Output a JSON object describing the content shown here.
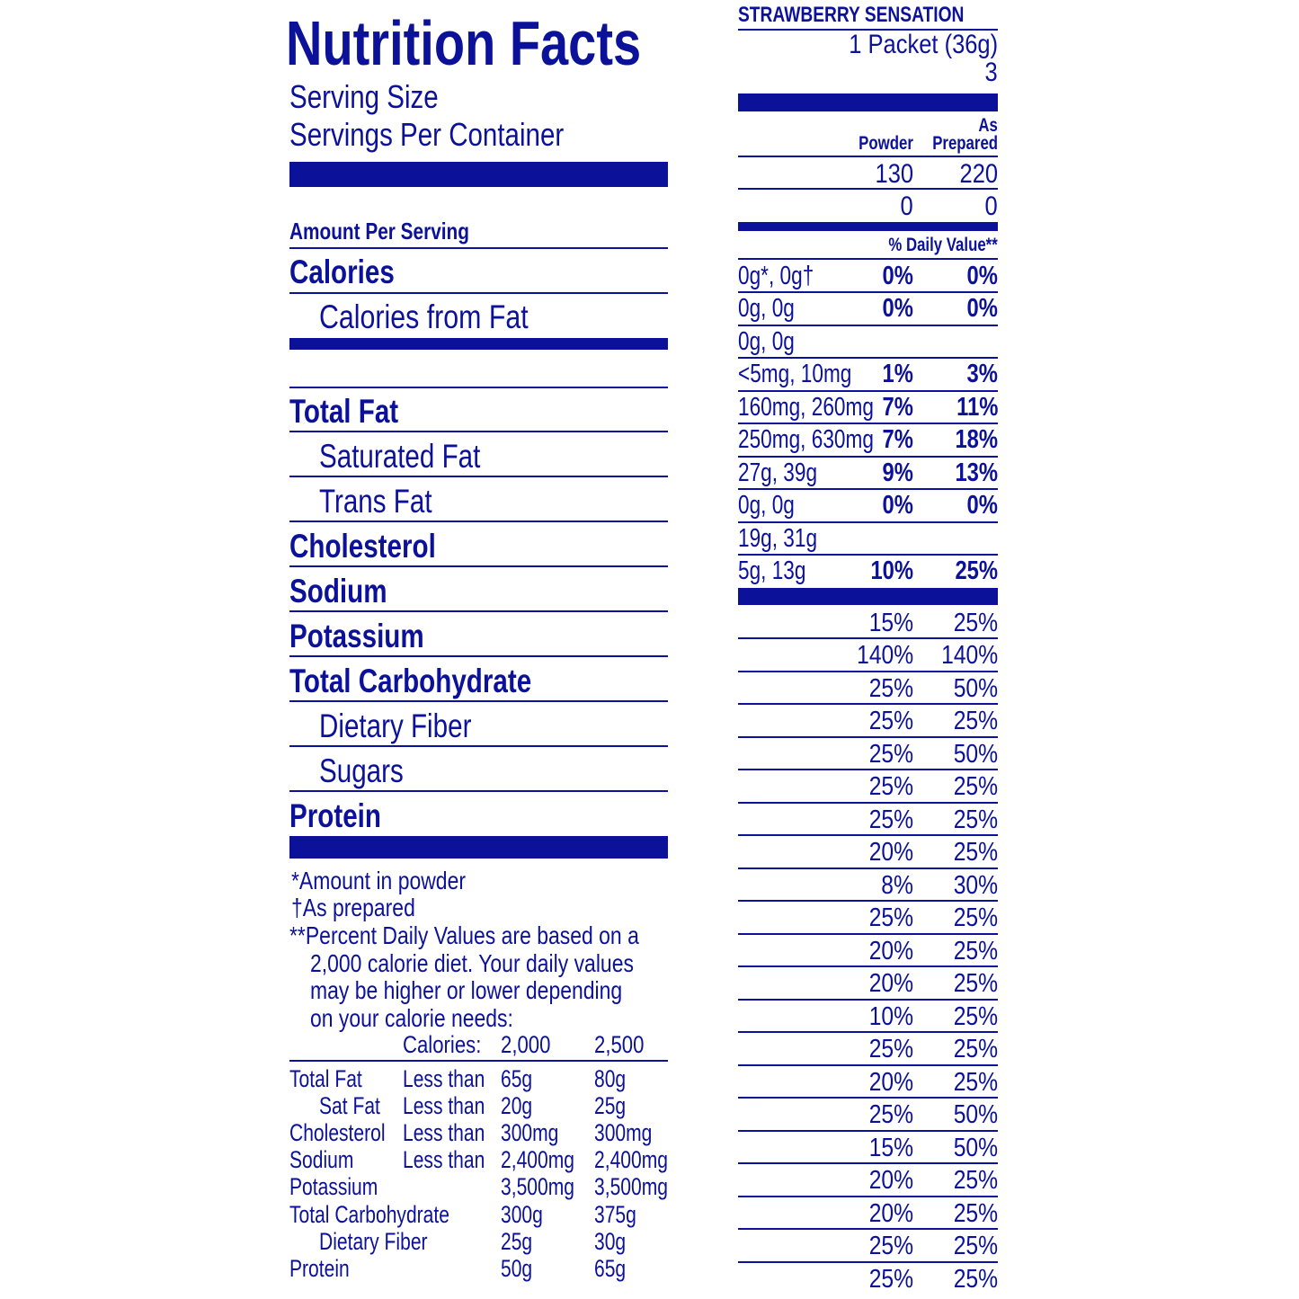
{
  "colors": {
    "ink": "#0c119a",
    "background": "#ffffff"
  },
  "title": "Nutrition Facts",
  "product_name": "STRAWBERRY SENSATION",
  "serving_size_label": "Serving Size",
  "serving_size_value": "1 Packet (36g)",
  "servings_label": "Servings Per Container",
  "servings_value": "3",
  "amount_per_serving": "Amount Per Serving",
  "columns": {
    "powder": "Powder",
    "as": "As",
    "prepared": "Prepared"
  },
  "calories": {
    "label": "Calories",
    "powder": "130",
    "prepared": "220"
  },
  "calories_from_fat": {
    "label": "Calories from Fat",
    "powder": "0",
    "prepared": "0"
  },
  "daily_value_header": "% Daily Value**",
  "nutrients": [
    {
      "label": "Total Fat",
      "indent": false,
      "amount": "0g*, 0g†",
      "powder": "0%",
      "prepared": "0%"
    },
    {
      "label": "Saturated Fat",
      "indent": true,
      "amount": "0g, 0g",
      "powder": "0%",
      "prepared": "0%"
    },
    {
      "label": "Trans Fat",
      "indent": true,
      "amount": "0g, 0g",
      "powder": "",
      "prepared": ""
    },
    {
      "label": "Cholesterol",
      "indent": false,
      "amount": "<5mg, 10mg",
      "powder": "1%",
      "prepared": "3%"
    },
    {
      "label": "Sodium",
      "indent": false,
      "amount": "160mg, 260mg",
      "powder": "7%",
      "prepared": "11%"
    },
    {
      "label": "Potassium",
      "indent": false,
      "amount": "250mg, 630mg",
      "powder": "7%",
      "prepared": "18%"
    },
    {
      "label": "Total Carbohydrate",
      "indent": false,
      "amount": "27g, 39g",
      "powder": "9%",
      "prepared": "13%"
    },
    {
      "label": "Dietary Fiber",
      "indent": true,
      "amount": "0g, 0g",
      "powder": "0%",
      "prepared": "0%"
    },
    {
      "label": "Sugars",
      "indent": true,
      "amount": "19g, 31g",
      "powder": "",
      "prepared": ""
    },
    {
      "label": "Protein",
      "indent": false,
      "amount": "5g, 13g",
      "powder": "10%",
      "prepared": "25%"
    }
  ],
  "vitamins": [
    {
      "powder": "15%",
      "prepared": "25%"
    },
    {
      "powder": "140%",
      "prepared": "140%"
    },
    {
      "powder": "25%",
      "prepared": "50%"
    },
    {
      "powder": "25%",
      "prepared": "25%"
    },
    {
      "powder": "25%",
      "prepared": "50%"
    },
    {
      "powder": "25%",
      "prepared": "25%"
    },
    {
      "powder": "25%",
      "prepared": "25%"
    },
    {
      "powder": "20%",
      "prepared": "25%"
    },
    {
      "powder": "8%",
      "prepared": "30%"
    },
    {
      "powder": "25%",
      "prepared": "25%"
    },
    {
      "powder": "20%",
      "prepared": "25%"
    },
    {
      "powder": "20%",
      "prepared": "25%"
    },
    {
      "powder": "10%",
      "prepared": "25%"
    },
    {
      "powder": "25%",
      "prepared": "25%"
    },
    {
      "powder": "20%",
      "prepared": "25%"
    },
    {
      "powder": "25%",
      "prepared": "50%"
    },
    {
      "powder": "15%",
      "prepared": "50%"
    },
    {
      "powder": "20%",
      "prepared": "25%"
    },
    {
      "powder": "20%",
      "prepared": "25%"
    },
    {
      "powder": "25%",
      "prepared": "25%"
    },
    {
      "powder": "25%",
      "prepared": "25%"
    }
  ],
  "footnotes": {
    "powder": "*Amount in powder",
    "prepared": "†As prepared",
    "dv_lines": [
      "**Percent Daily Values are based on a",
      "2,000 calorie diet. Your daily values",
      "may be higher or lower depending",
      "on your calorie needs:"
    ]
  },
  "dv_table": {
    "header": {
      "label": "Calories:",
      "c2000": "2,000",
      "c2500": "2,500"
    },
    "rows": [
      {
        "label": "Total Fat",
        "indent": false,
        "qual": "Less than",
        "c2000": "65g",
        "c2500": "80g"
      },
      {
        "label": "Sat Fat",
        "indent": true,
        "qual": "Less than",
        "c2000": "20g",
        "c2500": "25g"
      },
      {
        "label": "Cholesterol",
        "indent": false,
        "qual": "Less than",
        "c2000": "300mg",
        "c2500": "300mg"
      },
      {
        "label": "Sodium",
        "indent": false,
        "qual": "Less than",
        "c2000": "2,400mg",
        "c2500": "2,400mg"
      },
      {
        "label": "Potassium",
        "indent": false,
        "qual": "",
        "c2000": "3,500mg",
        "c2500": "3,500mg"
      },
      {
        "label": "Total Carbohydrate",
        "indent": false,
        "qual": "",
        "c2000": "300g",
        "c2500": "375g"
      },
      {
        "label": "Dietary Fiber",
        "indent": true,
        "qual": "",
        "c2000": "25g",
        "c2500": "30g"
      },
      {
        "label": "Protein",
        "indent": false,
        "qual": "",
        "c2000": "50g",
        "c2500": "65g"
      }
    ]
  }
}
